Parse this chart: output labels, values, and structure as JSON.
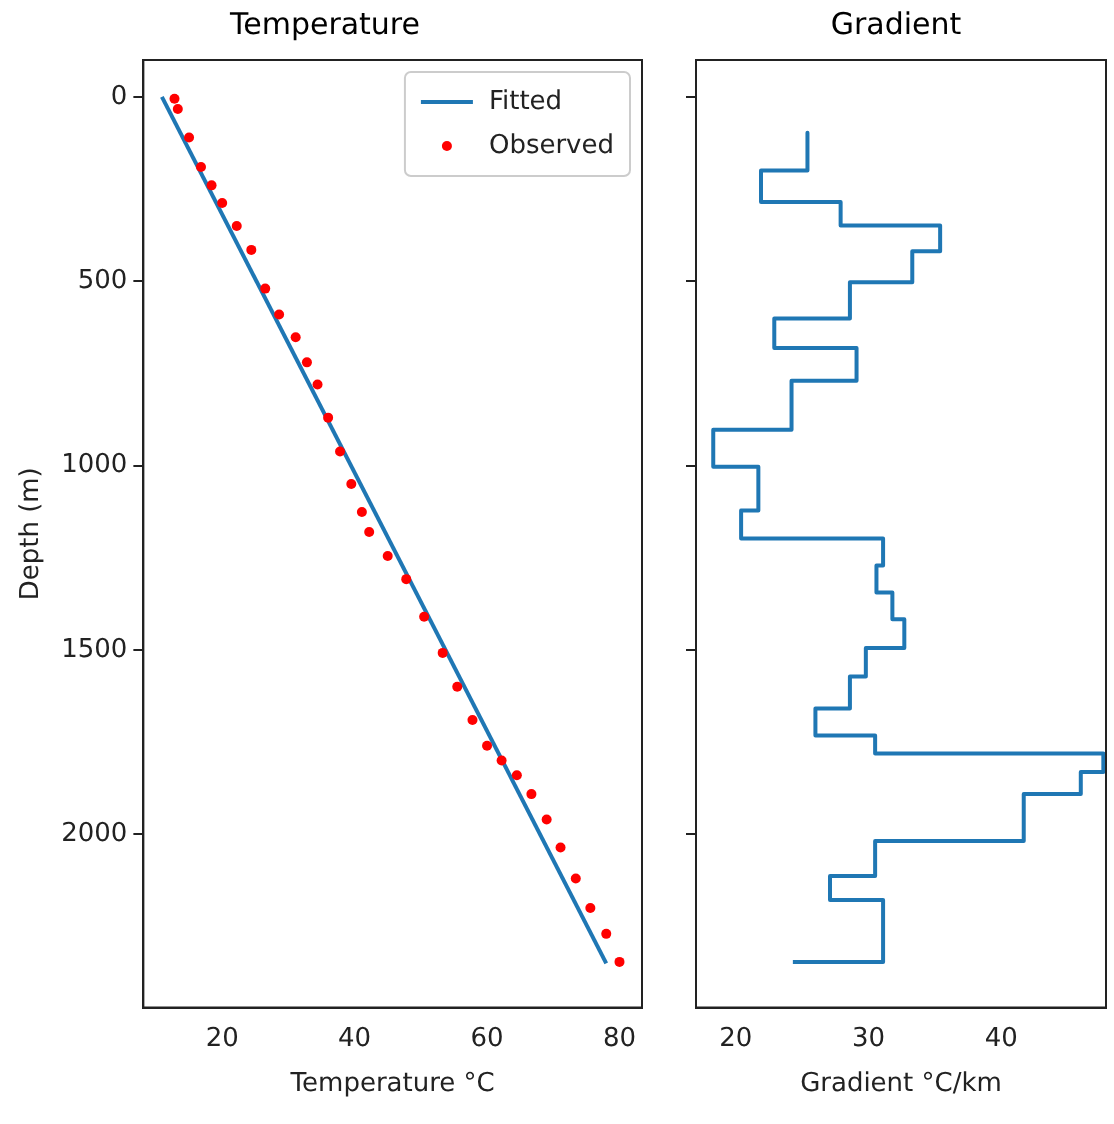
{
  "chart_data": [
    {
      "type": "scatter",
      "title": "Temperature",
      "xlabel": "Temperature °C",
      "ylabel": "Depth (m)",
      "xlim": [
        8.1,
        83.4
      ],
      "xticks": [
        20,
        40,
        60,
        80
      ],
      "ylim": [
        2470,
        -100
      ],
      "yticks": [
        0,
        500,
        1000,
        1500,
        2000
      ],
      "legend": "top right",
      "series": [
        {
          "name": "Fitted",
          "type": "line",
          "color": "#1f77b4",
          "x": [
            10.9,
            78.0
          ],
          "values": [
            0,
            2350
          ]
        },
        {
          "name": "Observed",
          "marker": "circle",
          "color": "#ff0000",
          "x": [
            12.8,
            13.3,
            15.0,
            16.8,
            18.4,
            20.0,
            22.2,
            24.4,
            26.5,
            28.6,
            31.1,
            32.8,
            34.4,
            36.0,
            37.8,
            39.5,
            41.1,
            42.2,
            45.0,
            47.8,
            50.5,
            53.3,
            55.5,
            57.8,
            60.0,
            62.2,
            64.5,
            66.7,
            69.0,
            71.1,
            73.4,
            75.6,
            78.0,
            80.0
          ],
          "values": [
            5,
            33,
            110,
            190,
            240,
            288,
            350,
            415,
            520,
            590,
            652,
            720,
            780,
            870,
            962,
            1050,
            1126,
            1180,
            1245,
            1308,
            1410,
            1508,
            1600,
            1690,
            1760,
            1800,
            1840,
            1891,
            1960,
            2036,
            2120,
            2200,
            2270,
            2346
          ]
        }
      ]
    },
    {
      "type": "line",
      "title": "Gradient",
      "xlabel": "Gradient °C/km",
      "xlim": [
        17.0,
        47.9
      ],
      "xticks": [
        20,
        30,
        40
      ],
      "ylim": [
        2470,
        -100
      ],
      "yticks": [
        0,
        500,
        1000,
        1500,
        2000
      ],
      "tick_labels": "x",
      "series": [
        {
          "color": "#1f77b4",
          "x": [
            25.4,
            25.4,
            21.9,
            21.9,
            27.9,
            27.9,
            35.4,
            35.4,
            33.3,
            33.3,
            28.6,
            28.6,
            22.9,
            22.9,
            29.1,
            29.1,
            24.2,
            24.2,
            18.3,
            18.3,
            21.7,
            21.7,
            20.4,
            20.4,
            31.1,
            31.1,
            30.6,
            30.6,
            31.8,
            31.8,
            32.7,
            32.7,
            29.8,
            29.8,
            28.6,
            28.6,
            26.0,
            26.0,
            30.5,
            30.5,
            47.7,
            47.7,
            46.0,
            46.0,
            41.7,
            41.7,
            30.5,
            30.5,
            27.1,
            27.1,
            31.1,
            31.1,
            24.3
          ],
          "values": [
            97,
            200,
            200,
            285,
            285,
            349,
            349,
            419,
            419,
            503,
            503,
            601,
            601,
            681,
            681,
            770,
            770,
            903,
            903,
            1003,
            1003,
            1122,
            1122,
            1198,
            1198,
            1271,
            1271,
            1344,
            1344,
            1417,
            1417,
            1495,
            1495,
            1572,
            1572,
            1659,
            1659,
            1732,
            1732,
            1781,
            1781,
            1831,
            1831,
            1891,
            1891,
            2018,
            2018,
            2113,
            2113,
            2178,
            2178,
            2346,
            2346
          ]
        }
      ]
    }
  ]
}
